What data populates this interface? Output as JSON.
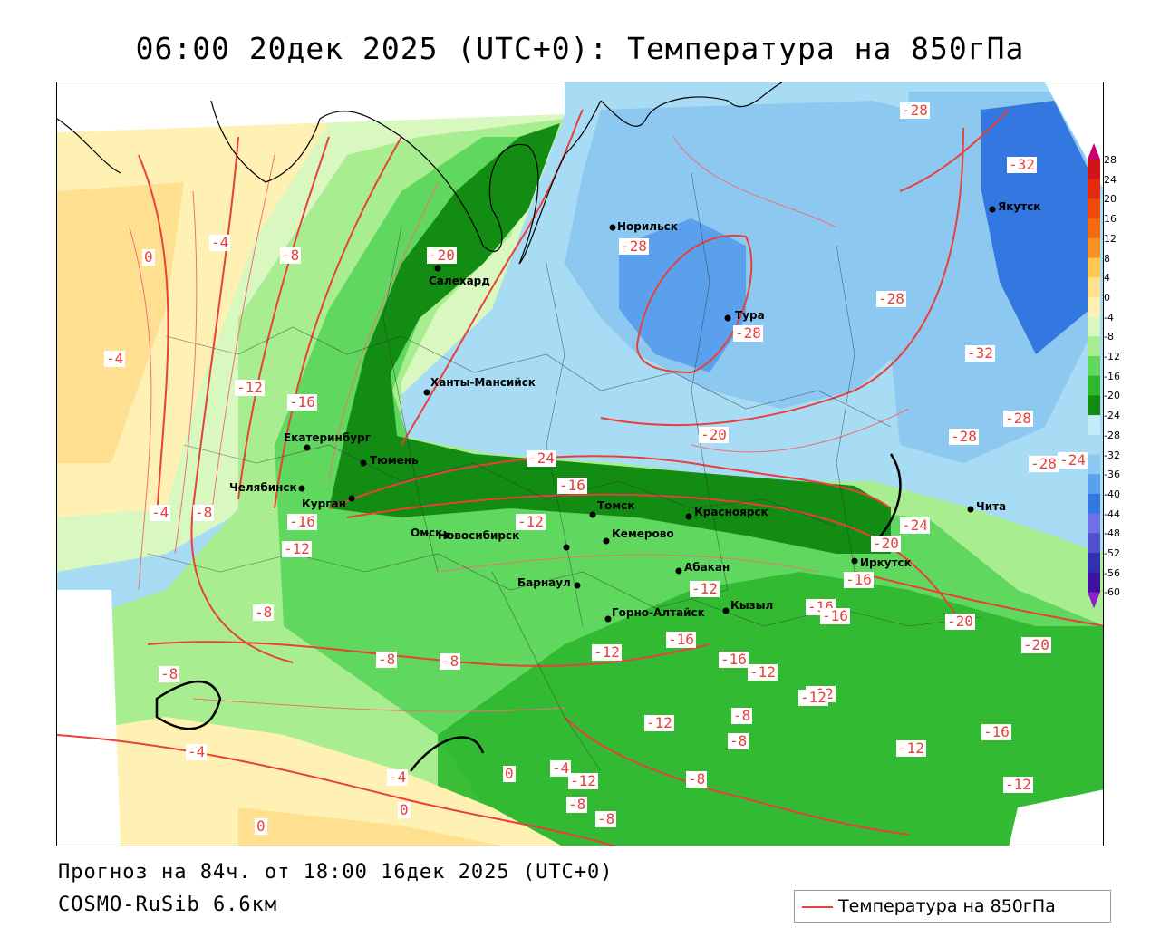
{
  "title": "06:00 20дек 2025 (UTC+0): Температура на 850гПа",
  "footer": {
    "forecast": "Прогноз на 84ч. от 18:00 16дек 2025 (UTC+0)",
    "model": "COSMO-RuSib 6.6км"
  },
  "legend": {
    "label": "Температура на 850гПа",
    "line_color": "#e8403a"
  },
  "colorbar": {
    "ticks": [
      "28",
      "24",
      "20",
      "16",
      "12",
      "8",
      "4",
      "0",
      "-4",
      "-8",
      "-12",
      "-16",
      "-20",
      "-24",
      "-28",
      "-32",
      "-36",
      "-40",
      "-44",
      "-48",
      "-52",
      "-56",
      "-60"
    ],
    "colors": [
      "#c8006e",
      "#d21414",
      "#e42a0a",
      "#ee4a0a",
      "#f46a10",
      "#fa9020",
      "#ffc850",
      "#ffe090",
      "#fff0b4",
      "#d8f8c0",
      "#a8ee90",
      "#60d860",
      "#2eb82e",
      "#128c12",
      "#c4ecf8",
      "#a8dcf4",
      "#8cc8f0",
      "#5aa0ec",
      "#3278e0",
      "#7070e8",
      "#5050d0",
      "#3030b0",
      "#4010a0",
      "#8a20c8"
    ]
  },
  "cities": [
    {
      "name": "Салехард"
    },
    {
      "name": "Норильск"
    },
    {
      "name": "Тура"
    },
    {
      "name": "Якутск"
    },
    {
      "name": "Ханты-Мансийск"
    },
    {
      "name": "Екатеринбург"
    },
    {
      "name": "Тюмень"
    },
    {
      "name": "Челябинск"
    },
    {
      "name": "Курган"
    },
    {
      "name": "Омск"
    },
    {
      "name": "Новосибирск"
    },
    {
      "name": "Томск"
    },
    {
      "name": "Кемерово"
    },
    {
      "name": "Красноярск"
    },
    {
      "name": "Барнаул"
    },
    {
      "name": "Абакан"
    },
    {
      "name": "Горно-Алтайск"
    },
    {
      "name": "Кызыл"
    },
    {
      "name": "Иркутск"
    },
    {
      "name": "Чита"
    }
  ],
  "contour_labels": [
    "-28",
    "-32",
    "-28",
    "-20",
    "-28",
    "-28",
    "-8",
    "-4",
    "0",
    "-4",
    "-12",
    "-16",
    "-28",
    "-32",
    "-28",
    "-28",
    "-24",
    "-20",
    "-16",
    "-24",
    "-4",
    "-8",
    "-16",
    "-12",
    "-12",
    "-24",
    "-20",
    "-16",
    "-12",
    "-16",
    "-16",
    "-8",
    "-20",
    "-20",
    "-8",
    "-8",
    "-8",
    "-12",
    "-16",
    "-16",
    "-12",
    "-12",
    "-8",
    "-12",
    "-12",
    "-4",
    "-16",
    "-8",
    "-12",
    "-4",
    "-12",
    "-4",
    "-8",
    "0",
    "-12",
    "-8",
    "0",
    "0",
    "-8"
  ]
}
